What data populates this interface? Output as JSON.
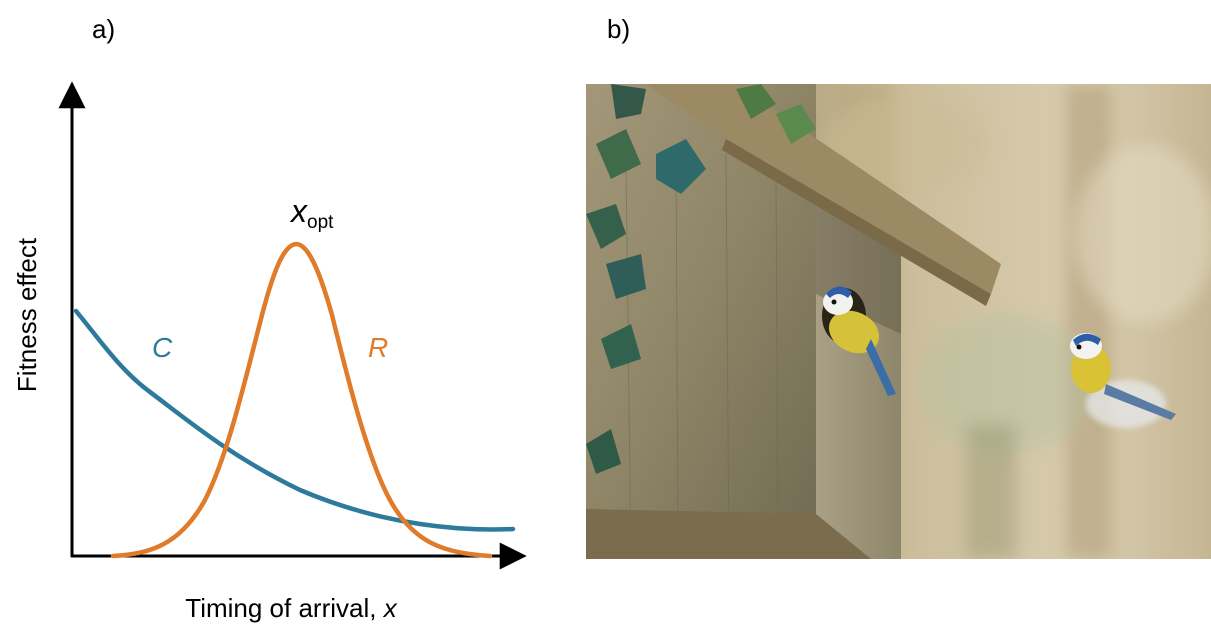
{
  "panels": {
    "a_label": "a)",
    "b_label": "b)"
  },
  "diagram": {
    "x_axis_title": "Timing of arrival, ",
    "x_axis_variable": "x",
    "y_axis_title": "Fitness effect",
    "peak_symbol": "x",
    "peak_subscript": "opt",
    "curves": [
      {
        "id": "C",
        "label": "C",
        "color": "#2e7a9c",
        "shape": "decreasing"
      },
      {
        "id": "R",
        "label": "R",
        "color": "#e07b2a",
        "shape": "bell"
      }
    ]
  },
  "photo": {
    "subject": "blue tits at a wooden nest box with ivy"
  }
}
